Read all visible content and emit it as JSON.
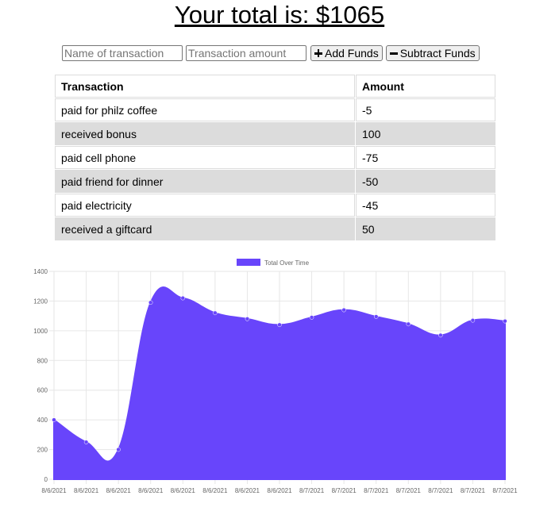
{
  "header": {
    "total_text": "Your total is: $1065"
  },
  "form": {
    "name_placeholder": "Name of transaction",
    "amount_placeholder": "Transaction amount",
    "add_label": "Add Funds",
    "subtract_label": "Subtract Funds"
  },
  "table": {
    "headers": [
      "Transaction",
      "Amount"
    ],
    "rows": [
      {
        "name": "paid for philz coffee",
        "amount": "-5"
      },
      {
        "name": "received bonus",
        "amount": "100"
      },
      {
        "name": "paid cell phone",
        "amount": "-75"
      },
      {
        "name": "paid friend for dinner",
        "amount": "-50"
      },
      {
        "name": "paid electricity",
        "amount": "-45"
      },
      {
        "name": "received a giftcard",
        "amount": "50"
      }
    ]
  },
  "colors": {
    "series_fill": "#6845fb",
    "grid": "#e6e6e6",
    "axis_text": "#666666"
  },
  "chart_data": {
    "type": "area",
    "legend": "top",
    "grid": true,
    "ylim": [
      0,
      1400
    ],
    "yticks": [
      0,
      200,
      400,
      600,
      800,
      1000,
      1200,
      1400
    ],
    "x": [
      "8/6/2021",
      "8/6/2021",
      "8/6/2021",
      "8/6/2021",
      "8/6/2021",
      "8/6/2021",
      "8/6/2021",
      "8/6/2021",
      "8/7/2021",
      "8/7/2021",
      "8/7/2021",
      "8/7/2021",
      "8/7/2021",
      "8/7/2021",
      "8/7/2021"
    ],
    "series": [
      {
        "name": "Total Over Time",
        "values": [
          400,
          250,
          200,
          1190,
          1220,
          1120,
          1080,
          1040,
          1090,
          1140,
          1095,
          1045,
          970,
          1070,
          1065
        ]
      }
    ]
  }
}
